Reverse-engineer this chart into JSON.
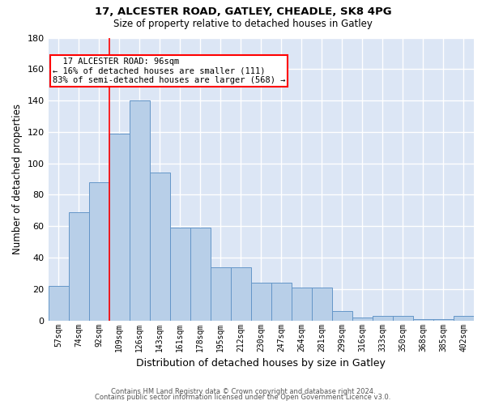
{
  "title1": "17, ALCESTER ROAD, GATLEY, CHEADLE, SK8 4PG",
  "title2": "Size of property relative to detached houses in Gatley",
  "xlabel": "Distribution of detached houses by size in Gatley",
  "ylabel": "Number of detached properties",
  "categories": [
    "57sqm",
    "74sqm",
    "92sqm",
    "109sqm",
    "126sqm",
    "143sqm",
    "161sqm",
    "178sqm",
    "195sqm",
    "212sqm",
    "230sqm",
    "247sqm",
    "264sqm",
    "281sqm",
    "299sqm",
    "316sqm",
    "333sqm",
    "350sqm",
    "368sqm",
    "385sqm",
    "402sqm"
  ],
  "values": [
    22,
    69,
    88,
    119,
    140,
    94,
    59,
    59,
    34,
    34,
    24,
    24,
    21,
    21,
    6,
    2,
    3,
    3,
    1,
    1,
    3
  ],
  "bar_color": "#b8cfe8",
  "bar_edge_color": "#6496c8",
  "background_color": "#dce6f5",
  "annotation_title": "17 ALCESTER ROAD: 96sqm",
  "annotation_line1": "← 16% of detached houses are smaller (111)",
  "annotation_line2": "83% of semi-detached houses are larger (568) →",
  "ylim": [
    0,
    180
  ],
  "yticks": [
    0,
    20,
    40,
    60,
    80,
    100,
    120,
    140,
    160,
    180
  ],
  "red_line_index": 2.5,
  "footnote1": "Contains HM Land Registry data © Crown copyright and database right 2024.",
  "footnote2": "Contains public sector information licensed under the Open Government Licence v3.0."
}
